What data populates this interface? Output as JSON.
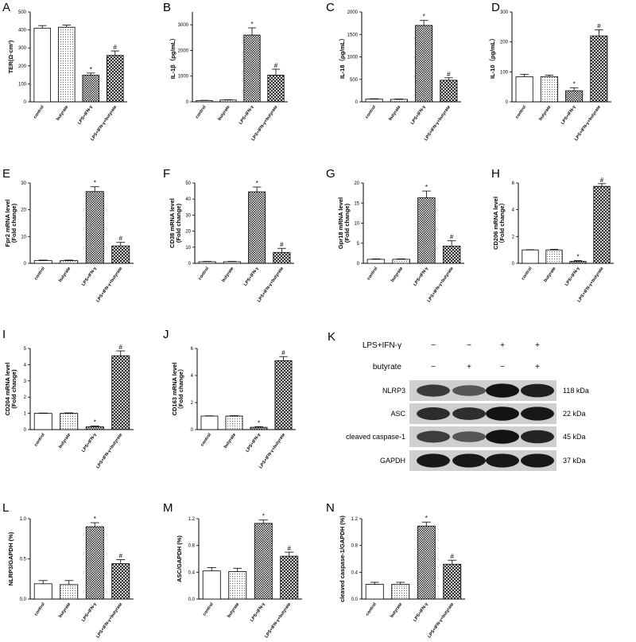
{
  "chart_data": [
    {
      "type": "bar",
      "panel": "A",
      "ylabel": "TER(Ω·cm²)",
      "ylim": [
        0,
        500
      ],
      "yticks": [
        0,
        100,
        200,
        300,
        400,
        500
      ],
      "categories": [
        "control",
        "butyrate",
        "LPS+IFN-γ",
        "LPS+IFN-γ+butyrate"
      ],
      "values": [
        410,
        415,
        148,
        258
      ],
      "errors": [
        14,
        12,
        12,
        25
      ],
      "sig": [
        "",
        "",
        "*",
        "#"
      ]
    },
    {
      "type": "bar",
      "panel": "B",
      "ylabel": "IL-1β（pg/mL）",
      "ylim": [
        0,
        3500
      ],
      "yticks": [
        0,
        1000,
        2000,
        3000
      ],
      "categories": [
        "control",
        "butyrate",
        "LPS+IFN-γ",
        "LPS+IFN-γ+butyrate"
      ],
      "values": [
        50,
        70,
        2600,
        1040
      ],
      "errors": [
        10,
        10,
        280,
        230
      ],
      "sig": [
        "",
        "",
        "*",
        "#"
      ]
    },
    {
      "type": "bar",
      "panel": "C",
      "ylabel": "IL-18（pg/mL）",
      "ylim": [
        0,
        2000
      ],
      "yticks": [
        0,
        500,
        1000,
        1500,
        2000
      ],
      "categories": [
        "control",
        "butyrate",
        "LPS+IFN-γ",
        "LPS+IFN-γ+butyrate"
      ],
      "values": [
        60,
        55,
        1700,
        480
      ],
      "errors": [
        8,
        8,
        110,
        55
      ],
      "sig": [
        "",
        "",
        "*",
        "#"
      ]
    },
    {
      "type": "bar",
      "panel": "D",
      "ylabel": "IL-10（pg/mL）",
      "ylim": [
        0,
        300
      ],
      "yticks": [
        0,
        100,
        200,
        300
      ],
      "categories": [
        "control",
        "butyrate",
        "LPS+IFN-γ",
        "LPS+IFN-γ+butyrate"
      ],
      "values": [
        84,
        84,
        37,
        220
      ],
      "errors": [
        8,
        5,
        10,
        20
      ],
      "sig": [
        "",
        "",
        "*",
        "#"
      ]
    },
    {
      "type": "bar",
      "panel": "E",
      "ylabel": [
        "Fpr2 mRNA level",
        "(Fold change)"
      ],
      "ylim": [
        0,
        30
      ],
      "yticks": [
        0,
        10,
        20,
        30
      ],
      "categories": [
        "control",
        "butyrate",
        "LPS+IFN-γ",
        "LPS+IFN-γ+butyrate"
      ],
      "values": [
        1,
        1,
        26.8,
        6.5
      ],
      "errors": [
        0.2,
        0.2,
        1.8,
        1.3
      ],
      "sig": [
        "",
        "",
        "*",
        "#"
      ]
    },
    {
      "type": "bar",
      "panel": "F",
      "ylabel": [
        "CD38 mRNA level",
        "(Fold change)"
      ],
      "ylim": [
        0,
        50
      ],
      "yticks": [
        0,
        10,
        20,
        30,
        40,
        50
      ],
      "categories": [
        "control",
        "butyrate",
        "LPS+IFN-γ",
        "LPS+IFN-γ+butyrate"
      ],
      "values": [
        1,
        1,
        44.5,
        6.8
      ],
      "errors": [
        0.2,
        0.2,
        3,
        2.5
      ],
      "sig": [
        "",
        "",
        "*",
        "#"
      ]
    },
    {
      "type": "bar",
      "panel": "G",
      "ylabel": [
        "Gpr18 mRNA level",
        "(Fold change)"
      ],
      "ylim": [
        0,
        20
      ],
      "yticks": [
        0,
        5,
        10,
        15,
        20
      ],
      "categories": [
        "control",
        "butyrate",
        "LPS+IFN-γ",
        "LPS+IFN-γ+butyrate"
      ],
      "values": [
        1,
        1,
        16.3,
        4.3
      ],
      "errors": [
        0.1,
        0.1,
        1.7,
        1.3
      ],
      "sig": [
        "",
        "",
        "*",
        "#"
      ]
    },
    {
      "type": "bar",
      "panel": "H",
      "ylabel": [
        "CD206 mRNA level",
        "（Fold change）"
      ],
      "ylim": [
        0,
        6
      ],
      "yticks": [
        0,
        2,
        4,
        6
      ],
      "categories": [
        "control",
        "butyrate",
        "LPS+IFN-γ",
        "LPS+IFN-γ+butyrate"
      ],
      "values": [
        1,
        1,
        0.15,
        5.75
      ],
      "errors": [
        0.02,
        0.05,
        0.05,
        0.2
      ],
      "sig": [
        "",
        "",
        "*",
        "#"
      ]
    },
    {
      "type": "bar",
      "panel": "I",
      "ylabel": [
        "CD204 mRNA level",
        "(Fold change)"
      ],
      "ylim": [
        0,
        5
      ],
      "yticks": [
        0,
        1,
        2,
        3,
        4,
        5
      ],
      "categories": [
        "control",
        "butyrate",
        "LPS+IFN-γ",
        "LPS+IFN-γ+butyrate"
      ],
      "values": [
        1,
        1,
        0.17,
        4.55
      ],
      "errors": [
        0.02,
        0.03,
        0.05,
        0.3
      ],
      "sig": [
        "",
        "",
        "*",
        "#"
      ]
    },
    {
      "type": "bar",
      "panel": "J",
      "ylabel": [
        "CD163 mRNA level",
        "（Fold change）"
      ],
      "ylim": [
        0,
        6
      ],
      "yticks": [
        0,
        2,
        4,
        6
      ],
      "categories": [
        "control",
        "butyrate",
        "LPS+IFN-γ",
        "LPS+IFN-γ+butyrate"
      ],
      "values": [
        1,
        1,
        0.17,
        5.1
      ],
      "errors": [
        0.02,
        0.03,
        0.05,
        0.3
      ],
      "sig": [
        "",
        "",
        "*",
        "#"
      ]
    },
    {
      "type": "bar",
      "panel": "L",
      "ylabel": "NLRP3/GAPDH (%)",
      "ylim": [
        0,
        1.0
      ],
      "yticks": [
        0.0,
        0.5,
        1.0
      ],
      "categories": [
        "control",
        "butyrate",
        "LPS+IFN-γ",
        "LPS+IFN-γ+butyrate"
      ],
      "values": [
        0.19,
        0.18,
        0.9,
        0.44
      ],
      "errors": [
        0.04,
        0.05,
        0.05,
        0.05
      ],
      "sig": [
        "",
        "",
        "*",
        "#"
      ]
    },
    {
      "type": "bar",
      "panel": "M",
      "ylabel": "ASC/GAPDH (%)",
      "ylim": [
        0,
        1.2
      ],
      "yticks": [
        0.0,
        0.4,
        0.8,
        1.2
      ],
      "categories": [
        "control",
        "butyrate",
        "LPS+IFN-γ",
        "LPS+IFN-γ+butyrate"
      ],
      "values": [
        0.42,
        0.41,
        1.13,
        0.64
      ],
      "errors": [
        0.05,
        0.05,
        0.05,
        0.06
      ],
      "sig": [
        "",
        "",
        "*",
        "#"
      ]
    },
    {
      "type": "bar",
      "panel": "N",
      "ylabel": "cleaved caspase-1/GAPDH (%)",
      "ylim": [
        0,
        1.2
      ],
      "yticks": [
        0.0,
        0.4,
        0.8,
        1.2
      ],
      "categories": [
        "control",
        "butyrate",
        "LPS+IFN-γ",
        "LPS+IFN-γ+butyrate"
      ],
      "values": [
        0.22,
        0.22,
        1.09,
        0.52
      ],
      "errors": [
        0.03,
        0.03,
        0.06,
        0.06
      ],
      "sig": [
        "",
        "",
        "*",
        "#"
      ]
    }
  ],
  "western_blot": {
    "panel": "K",
    "conditions": [
      {
        "label": "LPS+IFN-γ",
        "marks": [
          "−",
          "−",
          "+",
          "+"
        ]
      },
      {
        "label": "butyrate",
        "marks": [
          "−",
          "+",
          "−",
          "+"
        ]
      }
    ],
    "bands": [
      {
        "name": "NLRP3",
        "size": "118 kDa",
        "intensity": [
          0.72,
          0.55,
          0.95,
          0.88
        ]
      },
      {
        "name": "ASC",
        "size": "22 kDa",
        "intensity": [
          0.8,
          0.78,
          0.95,
          0.92
        ]
      },
      {
        "name": "cleaved caspase-1",
        "size": "45 kDa",
        "intensity": [
          0.7,
          0.55,
          0.95,
          0.85
        ]
      },
      {
        "name": "GAPDH",
        "size": "37 kDa",
        "intensity": [
          0.92,
          0.92,
          0.92,
          0.92
        ]
      }
    ]
  },
  "colors": {
    "axis": "#000000",
    "bar_fill": "#ffffff",
    "dots": "#555555",
    "crosshatch": "#111111"
  }
}
